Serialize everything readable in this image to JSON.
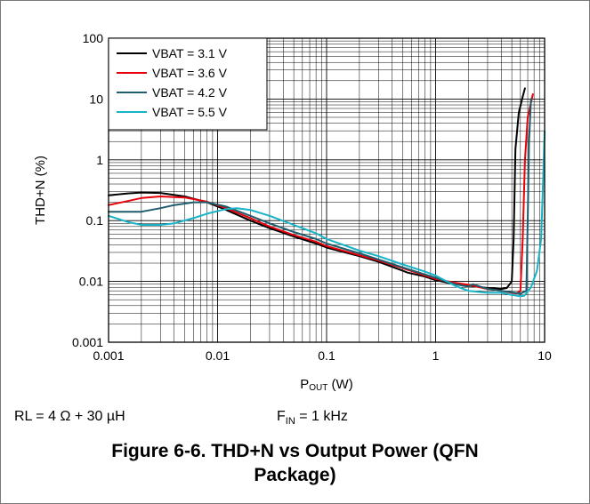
{
  "chart_data": {
    "type": "line",
    "xlabel_main": "P",
    "xlabel_sub": "OUT",
    "xlabel_unit": " (W)",
    "ylabel": "THD+N (%)",
    "xscale": "log",
    "yscale": "log",
    "xlim": [
      0.001,
      10
    ],
    "ylim": [
      0.001,
      100
    ],
    "x_ticks": [
      "0.001",
      "0.01",
      "0.1",
      "1",
      "10"
    ],
    "y_ticks": [
      "0.001",
      "0.01",
      "0.1",
      "1",
      "10",
      "100"
    ],
    "grid": true,
    "legend_position": "top-left",
    "series": [
      {
        "name": "VBAT = 3.1 V",
        "color": "#000000",
        "points": [
          [
            0.001,
            0.26
          ],
          [
            0.0015,
            0.28
          ],
          [
            0.002,
            0.29
          ],
          [
            0.003,
            0.285
          ],
          [
            0.005,
            0.25
          ],
          [
            0.008,
            0.2
          ],
          [
            0.012,
            0.15
          ],
          [
            0.02,
            0.1
          ],
          [
            0.03,
            0.075
          ],
          [
            0.05,
            0.055
          ],
          [
            0.08,
            0.042
          ],
          [
            0.1,
            0.036
          ],
          [
            0.2,
            0.026
          ],
          [
            0.3,
            0.021
          ],
          [
            0.5,
            0.015
          ],
          [
            0.55,
            0.014
          ],
          [
            0.6,
            0.0135
          ],
          [
            0.8,
            0.012
          ],
          [
            1.0,
            0.0105
          ],
          [
            1.5,
            0.009
          ],
          [
            2.0,
            0.0085
          ],
          [
            3.0,
            0.0078
          ],
          [
            4.0,
            0.0075
          ],
          [
            4.5,
            0.0078
          ],
          [
            5.0,
            0.01
          ],
          [
            5.2,
            0.05
          ],
          [
            5.4,
            1.5
          ],
          [
            5.8,
            6.0
          ],
          [
            6.3,
            11
          ],
          [
            6.6,
            15
          ]
        ]
      },
      {
        "name": "VBAT = 3.6 V",
        "color": "#e8000b",
        "points": [
          [
            0.001,
            0.18
          ],
          [
            0.0015,
            0.21
          ],
          [
            0.002,
            0.235
          ],
          [
            0.003,
            0.25
          ],
          [
            0.005,
            0.24
          ],
          [
            0.008,
            0.205
          ],
          [
            0.012,
            0.16
          ],
          [
            0.02,
            0.11
          ],
          [
            0.03,
            0.08
          ],
          [
            0.05,
            0.058
          ],
          [
            0.08,
            0.045
          ],
          [
            0.1,
            0.038
          ],
          [
            0.2,
            0.027
          ],
          [
            0.3,
            0.022
          ],
          [
            0.5,
            0.0165
          ],
          [
            0.8,
            0.0125
          ],
          [
            1.0,
            0.011
          ],
          [
            1.5,
            0.0095
          ],
          [
            2.0,
            0.0088
          ],
          [
            3.0,
            0.0075
          ],
          [
            4.0,
            0.007
          ],
          [
            5.0,
            0.0065
          ],
          [
            5.5,
            0.0063
          ],
          [
            6.0,
            0.007
          ],
          [
            6.3,
            0.05
          ],
          [
            6.6,
            1.0
          ],
          [
            7.0,
            5.0
          ],
          [
            7.8,
            12
          ]
        ]
      },
      {
        "name": "VBAT = 4.2 V",
        "color": "#1f5d6c",
        "points": [
          [
            0.001,
            0.14
          ],
          [
            0.002,
            0.14
          ],
          [
            0.003,
            0.16
          ],
          [
            0.004,
            0.18
          ],
          [
            0.006,
            0.2
          ],
          [
            0.008,
            0.2
          ],
          [
            0.012,
            0.17
          ],
          [
            0.02,
            0.12
          ],
          [
            0.03,
            0.09
          ],
          [
            0.05,
            0.065
          ],
          [
            0.08,
            0.05
          ],
          [
            0.1,
            0.042
          ],
          [
            0.2,
            0.029
          ],
          [
            0.3,
            0.023
          ],
          [
            0.5,
            0.017
          ],
          [
            0.8,
            0.013
          ],
          [
            1.0,
            0.0115
          ],
          [
            1.5,
            0.009
          ],
          [
            2.0,
            0.0082
          ],
          [
            2.2,
            0.009
          ],
          [
            3.0,
            0.0075
          ],
          [
            4.0,
            0.007
          ],
          [
            5.0,
            0.0066
          ],
          [
            6.0,
            0.0063
          ],
          [
            6.8,
            0.007
          ],
          [
            7.0,
            0.1
          ],
          [
            7.2,
            2.0
          ],
          [
            7.5,
            10
          ]
        ]
      },
      {
        "name": "VBAT = 5.5 V",
        "color": "#17b3c6",
        "points": [
          [
            0.001,
            0.12
          ],
          [
            0.0015,
            0.095
          ],
          [
            0.002,
            0.085
          ],
          [
            0.003,
            0.085
          ],
          [
            0.004,
            0.09
          ],
          [
            0.006,
            0.11
          ],
          [
            0.008,
            0.13
          ],
          [
            0.012,
            0.155
          ],
          [
            0.015,
            0.16
          ],
          [
            0.02,
            0.15
          ],
          [
            0.03,
            0.12
          ],
          [
            0.05,
            0.085
          ],
          [
            0.08,
            0.062
          ],
          [
            0.1,
            0.05
          ],
          [
            0.2,
            0.032
          ],
          [
            0.3,
            0.026
          ],
          [
            0.5,
            0.019
          ],
          [
            0.8,
            0.0145
          ],
          [
            1.0,
            0.0125
          ],
          [
            1.5,
            0.0085
          ],
          [
            2.0,
            0.007
          ],
          [
            3.0,
            0.0065
          ],
          [
            4.0,
            0.0065
          ],
          [
            5.0,
            0.006
          ],
          [
            6.0,
            0.0057
          ],
          [
            6.5,
            0.0058
          ],
          [
            7.5,
            0.008
          ],
          [
            8.5,
            0.015
          ],
          [
            9.3,
            0.05
          ],
          [
            9.7,
            0.5
          ],
          [
            10,
            3.0
          ]
        ]
      }
    ]
  },
  "conditions": {
    "rl": "RL = 4 Ω + 30 µH",
    "fin_main": "F",
    "fin_sub": "IN",
    "fin_rest": " = 1 kHz"
  },
  "caption": {
    "line1": "Figure 6-6. THD+N vs Output Power (QFN",
    "line2": "Package)"
  }
}
